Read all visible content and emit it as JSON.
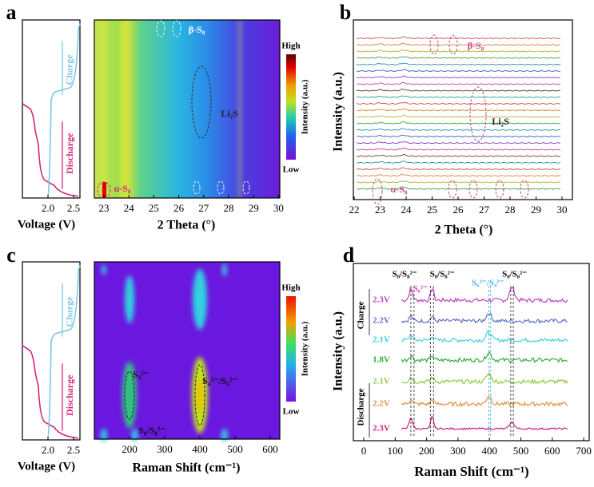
{
  "panels": [
    {
      "letter": "a",
      "voltage_label": "Voltage (V)",
      "voltage_ticks": [
        "2.0",
        "2.5"
      ],
      "charge": "Charge",
      "discharge": "Discharge",
      "map_label": "2 Theta (°)",
      "map_ticks": [
        "23",
        "24",
        "25",
        "26",
        "27",
        "28",
        "29",
        "30"
      ],
      "colorbar": {
        "high": "High",
        "low": "Low",
        "label": "Intensity (a.u.)"
      },
      "annotations": [
        "β-S₈",
        "Li₂S",
        "α-S₈"
      ]
    },
    {
      "letter": "b",
      "x_label": "2 Theta (°)",
      "y_label": "Intensity (a.u.)",
      "x_ticks": [
        "22",
        "23",
        "24",
        "25",
        "26",
        "27",
        "28",
        "29",
        "30"
      ],
      "annotations": [
        "β-S₈",
        "Li₂S",
        "α-S₈"
      ]
    },
    {
      "letter": "c",
      "voltage_label": "Voltage (V)",
      "voltage_ticks": [
        "2.0",
        "2.5"
      ],
      "charge": "Charge",
      "discharge": "Discharge",
      "map_label": "Raman Shift (cm⁻¹)",
      "map_ticks": [
        "200",
        "300",
        "400",
        "500",
        "600"
      ],
      "colorbar": {
        "high": "High",
        "low": "Low",
        "label": "Intensity (a.u.)"
      },
      "annotations": [
        "S₃²⁻",
        "S₄²⁻/S₆²⁻",
        "S₈/S₈²⁻"
      ]
    },
    {
      "letter": "d",
      "x_label": "Raman Shift (cm⁻¹)",
      "y_label": "Intensity (a.u.)",
      "x_ticks": [
        "0",
        "100",
        "200",
        "300",
        "400",
        "500",
        "600",
        "700"
      ],
      "charge": "Charge",
      "discharge": "Discharge",
      "series_labels": [
        "2.3V",
        "2.2V",
        "2.1V",
        "1.8V",
        "2.1V",
        "2.2V",
        "2.3V"
      ],
      "annotations": [
        "S₈/S₈²⁻",
        "S₆²⁻",
        "S₈/S₈²⁻",
        "S₆²⁻/S₄²⁻",
        "S₈/S₈²⁻"
      ]
    }
  ]
}
